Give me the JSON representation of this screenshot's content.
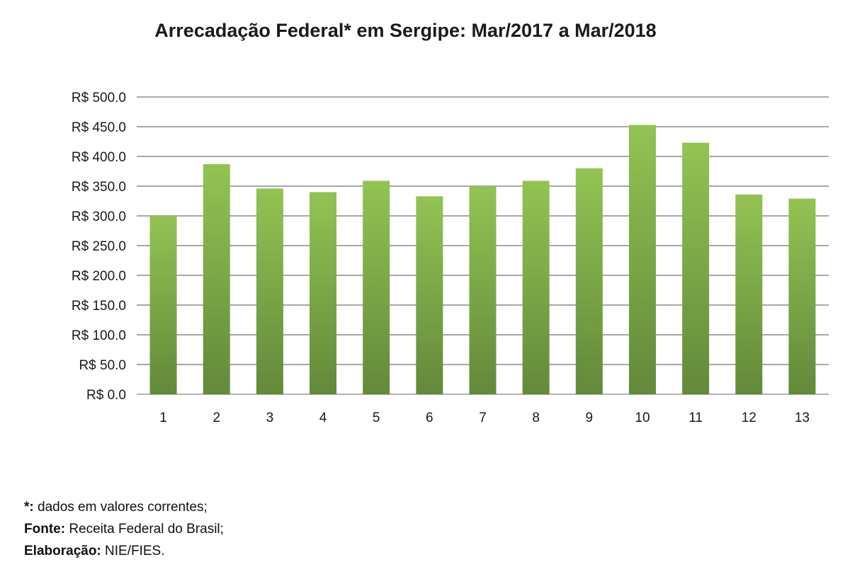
{
  "chart_data": {
    "type": "bar",
    "title": "Arrecadação Federal* em Sergipe: Mar/2017 a Mar/2018",
    "categories": [
      "1",
      "2",
      "3",
      "4",
      "5",
      "6",
      "7",
      "8",
      "9",
      "10",
      "11",
      "12",
      "13"
    ],
    "values": [
      300,
      387,
      346,
      340,
      359,
      333,
      350,
      359,
      380,
      453,
      423,
      336,
      329
    ],
    "ylim": [
      0,
      500
    ],
    "yticks": [
      0,
      50,
      100,
      150,
      200,
      250,
      300,
      350,
      400,
      450,
      500
    ],
    "ytick_labels": [
      "R$ 0.0",
      "R$ 50.0",
      "R$ 100.0",
      "R$ 150.0",
      "R$ 200.0",
      "R$ 250.0",
      "R$ 300.0",
      "R$ 350.0",
      "R$ 400.0",
      "R$ 450.0",
      "R$ 500.0"
    ],
    "grid": true,
    "legend": "none",
    "bar_color_top": "#93c353",
    "bar_color_bottom": "#63893a",
    "xlabel": "",
    "ylabel": ""
  },
  "notes": [
    {
      "key": "*:",
      "text": " dados em valores correntes;"
    },
    {
      "key": "Fonte:",
      "text": " Receita Federal do Brasil;"
    },
    {
      "key": "Elaboração:",
      "text": " NIE/FIES."
    }
  ]
}
